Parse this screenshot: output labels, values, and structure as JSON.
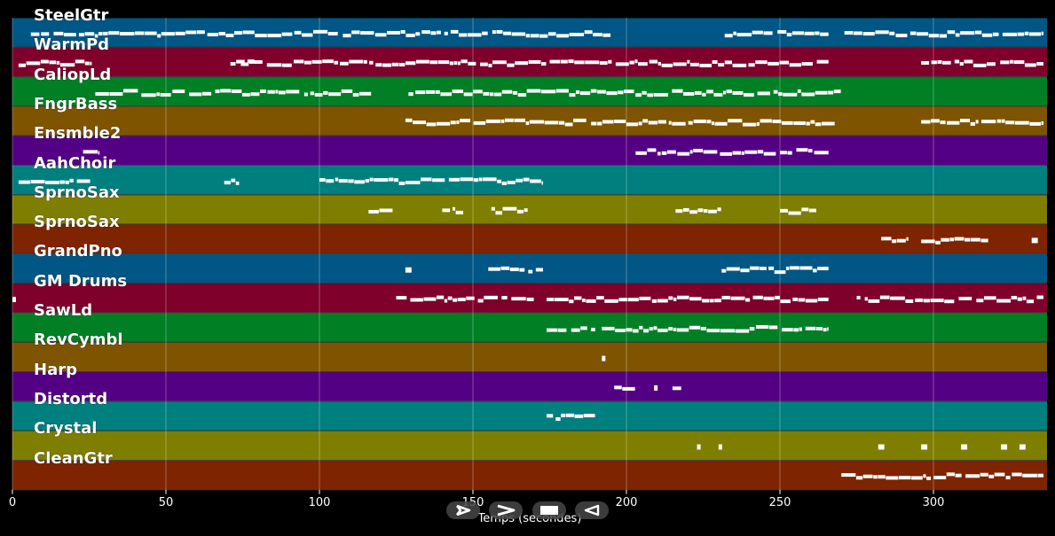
{
  "chart_data": {
    "type": "piano-roll-timeline",
    "xlabel": "Temps (secondes)",
    "xlim": [
      0,
      337
    ],
    "xticks": [
      0,
      50,
      100,
      150,
      200,
      250,
      300
    ],
    "grid": true,
    "tracks": [
      {
        "name": "SteelGtr",
        "color": "#005684",
        "segments": [
          [
            6,
            195
          ],
          [
            232,
            266
          ],
          [
            271,
            336
          ]
        ]
      },
      {
        "name": "WarmPd",
        "color": "#7e002b",
        "segments": [
          [
            2,
            26
          ],
          [
            71,
            79
          ],
          [
            73,
            174
          ],
          [
            175,
            194
          ],
          [
            194,
            266
          ],
          [
            296,
            336
          ]
        ]
      },
      {
        "name": "CaliopLd",
        "color": "#007f25",
        "segments": [
          [
            27,
            117
          ],
          [
            129,
            270
          ]
        ]
      },
      {
        "name": "FngrBass",
        "color": "#7e5400",
        "segments": [
          [
            128,
            268
          ],
          [
            296,
            336
          ]
        ]
      },
      {
        "name": "Ensmble2",
        "color": "#540084",
        "segments": [
          [
            23,
            28
          ],
          [
            203,
            266
          ]
        ]
      },
      {
        "name": "AahChoir",
        "color": "#007f7f",
        "segments": [
          [
            2,
            26
          ],
          [
            69,
            74
          ],
          [
            100,
            173
          ]
        ]
      },
      {
        "name": "SprnoSax",
        "color": "#7e7e00",
        "segments": [
          [
            116,
            124
          ],
          [
            140,
            147
          ],
          [
            156,
            168
          ],
          [
            216,
            231
          ],
          [
            250,
            262
          ]
        ]
      },
      {
        "name": "SprnoSax",
        "color": "#7e2400",
        "segments": [
          [
            283,
            292
          ],
          [
            296,
            318
          ],
          [
            332,
            334
          ]
        ]
      },
      {
        "name": "GrandPno",
        "color": "#005684",
        "segments": [
          [
            128,
            130
          ],
          [
            155,
            167
          ],
          [
            168,
            173
          ],
          [
            231,
            266
          ]
        ]
      },
      {
        "name": "GM Drums",
        "color": "#7e002b",
        "segments": [
          [
            0,
            1
          ],
          [
            125,
            170
          ],
          [
            174,
            266
          ],
          [
            275,
            336
          ]
        ]
      },
      {
        "name": "SawLd",
        "color": "#007f25",
        "segments": [
          [
            174,
            190
          ],
          [
            192,
            266
          ]
        ]
      },
      {
        "name": "RevCymbl",
        "color": "#7e5400",
        "segments": [
          [
            192,
            193
          ]
        ]
      },
      {
        "name": "Harp",
        "color": "#540084",
        "segments": [
          [
            196,
            203
          ],
          [
            209,
            210
          ],
          [
            215,
            218
          ]
        ]
      },
      {
        "name": "Distortd",
        "color": "#007f7f",
        "segments": [
          [
            174,
            190
          ]
        ]
      },
      {
        "name": "Crystal",
        "color": "#7e7e00",
        "segments": [
          [
            223,
            224
          ],
          [
            230,
            231
          ],
          [
            282,
            284
          ],
          [
            296,
            298
          ],
          [
            309,
            311
          ],
          [
            322,
            324
          ],
          [
            328,
            330
          ]
        ]
      },
      {
        "name": "CleanGtr",
        "color": "#7e2400",
        "segments": [
          [
            270,
            336
          ]
        ]
      }
    ]
  },
  "controls": {
    "play_label": "play",
    "forward_label": "forward",
    "stop_label": "stop",
    "back_label": "back"
  }
}
